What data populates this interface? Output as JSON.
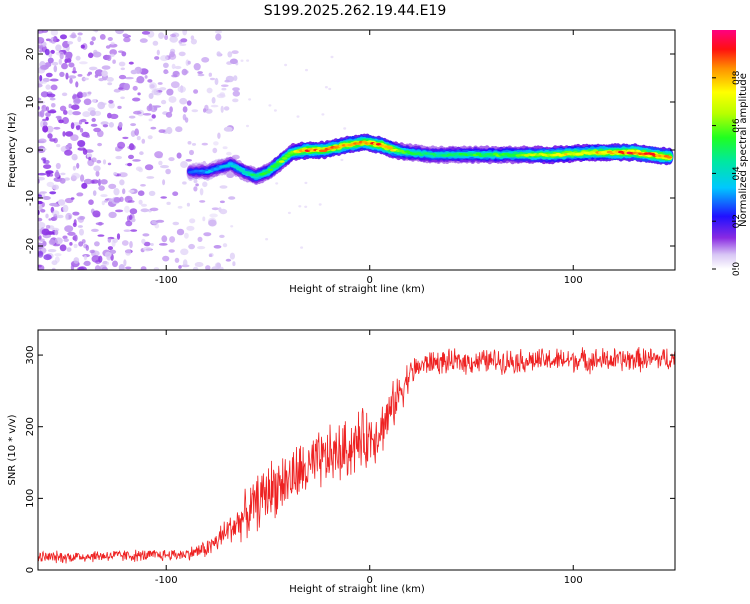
{
  "figure": {
    "title": "S199.2025.262.19.44.E19"
  },
  "chart_data": [
    {
      "type": "heatmap",
      "title": "S199.2025.262.19.44.E19",
      "xlabel": "Height of straight line (km)",
      "ylabel": "Frequency (Hz)",
      "xlim": [
        -163,
        150
      ],
      "ylim": [
        -25,
        25
      ],
      "xticks": [
        -100,
        0,
        100
      ],
      "yticks": [
        -20,
        -10,
        0,
        10,
        20
      ],
      "colorbar": {
        "label": "Normalized spectral amplitude",
        "range": [
          0,
          1
        ],
        "ticks": [
          0.0,
          0.2,
          0.4,
          0.6,
          0.8
        ],
        "tick_labels": [
          "0.0",
          "0.2",
          "0.4",
          "0.6",
          "0.8"
        ]
      },
      "noise_region": {
        "x_range": [
          -163,
          -65
        ],
        "description": "scattered purple speckle noise"
      },
      "signal_ridge": {
        "x": [
          -88,
          -80,
          -72,
          -68,
          -62,
          -56,
          -50,
          -44,
          -38,
          -30,
          -22,
          -12,
          -4,
          0,
          6,
          12,
          18,
          30,
          50,
          70,
          90,
          110,
          130,
          148
        ],
        "y": [
          -4.5,
          -4.5,
          -3.5,
          -3.0,
          -4.5,
          -5.5,
          -4.5,
          -2.5,
          -0.5,
          0.0,
          0.0,
          1.0,
          1.5,
          1.5,
          1.0,
          0.0,
          -0.5,
          -1.0,
          -1.0,
          -1.0,
          -1.0,
          -0.5,
          -0.5,
          -1.5
        ],
        "amplitude": [
          0.3,
          0.35,
          0.35,
          0.4,
          0.45,
          0.5,
          0.55,
          0.65,
          0.7,
          0.9,
          0.85,
          0.85,
          0.85,
          0.9,
          0.9,
          0.75,
          0.55,
          0.5,
          0.55,
          0.6,
          0.75,
          0.8,
          0.95,
          0.9
        ]
      }
    },
    {
      "type": "line",
      "title": "",
      "xlabel": "Height of straight line (km)",
      "ylabel": "SNR (10 * v/v)",
      "xlim": [
        -163,
        150
      ],
      "ylim": [
        0,
        335
      ],
      "xticks": [
        -100,
        0,
        100
      ],
      "yticks": [
        0,
        100,
        200,
        300
      ],
      "series": [
        {
          "name": "SNR",
          "color": "#ee2222",
          "x": [
            -163,
            -150,
            -130,
            -110,
            -90,
            -80,
            -75,
            -70,
            -65,
            -60,
            -55,
            -50,
            -45,
            -40,
            -35,
            -30,
            -25,
            -20,
            -15,
            -10,
            -5,
            0,
            5,
            10,
            15,
            20,
            25,
            30,
            40,
            60,
            80,
            100,
            120,
            150
          ],
          "y": [
            18,
            18,
            20,
            20,
            22,
            30,
            40,
            55,
            65,
            80,
            95,
            110,
            120,
            125,
            135,
            140,
            150,
            158,
            163,
            170,
            180,
            185,
            195,
            220,
            250,
            275,
            285,
            290,
            290,
            292,
            292,
            293,
            293,
            295
          ],
          "noise_amplitude": [
            10,
            10,
            10,
            10,
            10,
            15,
            20,
            25,
            30,
            40,
            45,
            50,
            50,
            50,
            50,
            50,
            50,
            50,
            50,
            50,
            50,
            50,
            45,
            40,
            35,
            25,
            20,
            20,
            20,
            20,
            20,
            20,
            20,
            20
          ]
        }
      ]
    }
  ]
}
